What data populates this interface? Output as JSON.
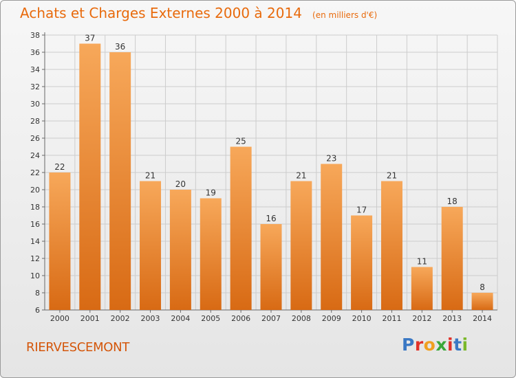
{
  "header": {
    "title": "Achats et Charges Externes 2000 à 2014",
    "subtitle": "(en milliers d'€)"
  },
  "footer": {
    "commune": "RIERVESCEMONT",
    "logo_letters": [
      "P",
      "r",
      "o",
      "x",
      "i",
      "t",
      "i"
    ],
    "logo_colors": [
      "#3a78c4",
      "#e0322a",
      "#f0a020",
      "#3aa83a",
      "#e0322a",
      "#3a78c4",
      "#7ab82a"
    ]
  },
  "colors": {
    "bar_top": "#f7a85a",
    "bar_bottom": "#d86a14",
    "grid": "#cccccc",
    "axis_text": "#333333"
  },
  "chart_data": {
    "type": "bar",
    "title": "Achats et Charges Externes 2000 à 2014",
    "categories": [
      "2000",
      "2001",
      "2002",
      "2003",
      "2004",
      "2005",
      "2006",
      "2007",
      "2008",
      "2009",
      "2010",
      "2011",
      "2012",
      "2013",
      "2014"
    ],
    "values": [
      22,
      37,
      36,
      21,
      20,
      19,
      25,
      16,
      21,
      23,
      17,
      21,
      11,
      18,
      8
    ],
    "ylim": [
      6,
      38
    ],
    "yticks": [
      6,
      8,
      10,
      12,
      14,
      16,
      18,
      20,
      22,
      24,
      26,
      28,
      30,
      32,
      34,
      36,
      38
    ],
    "grid": true,
    "xlabel": "",
    "ylabel": ""
  }
}
